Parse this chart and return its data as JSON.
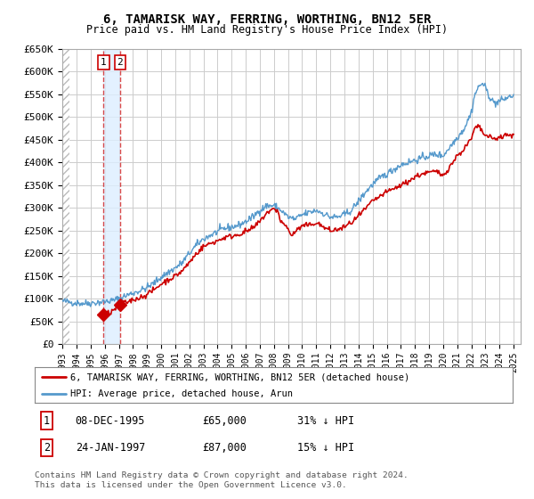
{
  "title": "6, TAMARISK WAY, FERRING, WORTHING, BN12 5ER",
  "subtitle": "Price paid vs. HM Land Registry's House Price Index (HPI)",
  "ylim": [
    0,
    650000
  ],
  "yticks": [
    0,
    50000,
    100000,
    150000,
    200000,
    250000,
    300000,
    350000,
    400000,
    450000,
    500000,
    550000,
    600000,
    650000
  ],
  "ytick_labels": [
    "£0",
    "£50K",
    "£100K",
    "£150K",
    "£200K",
    "£250K",
    "£300K",
    "£350K",
    "£400K",
    "£450K",
    "£500K",
    "£550K",
    "£600K",
    "£650K"
  ],
  "xlim_start": 1993.0,
  "xlim_end": 2025.5,
  "transactions": [
    {
      "label": "1",
      "date": "08-DEC-1995",
      "price": 65000,
      "year": 1995.92,
      "pct": "31% ↓ HPI"
    },
    {
      "label": "2",
      "date": "24-JAN-1997",
      "price": 87000,
      "year": 1997.07,
      "pct": "15% ↓ HPI"
    }
  ],
  "legend_line1": "6, TAMARISK WAY, FERRING, WORTHING, BN12 5ER (detached house)",
  "legend_line2": "HPI: Average price, detached house, Arun",
  "footer": "Contains HM Land Registry data © Crown copyright and database right 2024.\nThis data is licensed under the Open Government Licence v3.0.",
  "line_color_red": "#cc0000",
  "line_color_blue": "#5599cc",
  "shade_color": "#ddeeff",
  "vline_color": "#cc0000",
  "grid_color": "#cccccc",
  "bg_color": "#ffffff",
  "hpi_keypoints": [
    [
      1993.0,
      95000
    ],
    [
      1993.5,
      93000
    ],
    [
      1994.0,
      91000
    ],
    [
      1994.5,
      90000
    ],
    [
      1995.0,
      91000
    ],
    [
      1995.5,
      92000
    ],
    [
      1996.0,
      94000
    ],
    [
      1996.5,
      96000
    ],
    [
      1997.0,
      100000
    ],
    [
      1997.5,
      107000
    ],
    [
      1998.0,
      113000
    ],
    [
      1998.5,
      118000
    ],
    [
      1999.0,
      125000
    ],
    [
      1999.5,
      135000
    ],
    [
      2000.0,
      148000
    ],
    [
      2000.5,
      158000
    ],
    [
      2001.0,
      168000
    ],
    [
      2001.5,
      180000
    ],
    [
      2002.0,
      200000
    ],
    [
      2002.5,
      218000
    ],
    [
      2003.0,
      232000
    ],
    [
      2003.5,
      240000
    ],
    [
      2004.0,
      248000
    ],
    [
      2004.5,
      255000
    ],
    [
      2005.0,
      258000
    ],
    [
      2005.5,
      262000
    ],
    [
      2006.0,
      270000
    ],
    [
      2006.5,
      280000
    ],
    [
      2007.0,
      295000
    ],
    [
      2007.5,
      305000
    ],
    [
      2008.0,
      305000
    ],
    [
      2008.5,
      295000
    ],
    [
      2009.0,
      280000
    ],
    [
      2009.5,
      275000
    ],
    [
      2010.0,
      285000
    ],
    [
      2010.5,
      290000
    ],
    [
      2011.0,
      295000
    ],
    [
      2011.5,
      288000
    ],
    [
      2012.0,
      280000
    ],
    [
      2012.5,
      280000
    ],
    [
      2013.0,
      285000
    ],
    [
      2013.5,
      295000
    ],
    [
      2014.0,
      315000
    ],
    [
      2014.5,
      335000
    ],
    [
      2015.0,
      352000
    ],
    [
      2015.5,
      365000
    ],
    [
      2016.0,
      375000
    ],
    [
      2016.5,
      385000
    ],
    [
      2017.0,
      395000
    ],
    [
      2017.5,
      400000
    ],
    [
      2018.0,
      405000
    ],
    [
      2018.5,
      410000
    ],
    [
      2019.0,
      415000
    ],
    [
      2019.5,
      418000
    ],
    [
      2020.0,
      415000
    ],
    [
      2020.5,
      435000
    ],
    [
      2021.0,
      455000
    ],
    [
      2021.5,
      475000
    ],
    [
      2022.0,
      510000
    ],
    [
      2022.25,
      550000
    ],
    [
      2022.5,
      565000
    ],
    [
      2022.75,
      575000
    ],
    [
      2023.0,
      565000
    ],
    [
      2023.25,
      548000
    ],
    [
      2023.5,
      535000
    ],
    [
      2023.75,
      530000
    ],
    [
      2024.0,
      535000
    ],
    [
      2024.5,
      542000
    ],
    [
      2025.0,
      548000
    ]
  ],
  "red_keypoints": [
    [
      1995.92,
      65000
    ],
    [
      1996.5,
      72000
    ],
    [
      1997.07,
      87000
    ],
    [
      1997.5,
      92000
    ],
    [
      1998.0,
      98000
    ],
    [
      1998.5,
      103000
    ],
    [
      1999.0,
      110000
    ],
    [
      1999.5,
      120000
    ],
    [
      2000.0,
      133000
    ],
    [
      2000.5,
      142000
    ],
    [
      2001.0,
      150000
    ],
    [
      2001.5,
      162000
    ],
    [
      2002.0,
      180000
    ],
    [
      2002.5,
      200000
    ],
    [
      2003.0,
      215000
    ],
    [
      2003.5,
      222000
    ],
    [
      2004.0,
      228000
    ],
    [
      2004.5,
      235000
    ],
    [
      2005.0,
      238000
    ],
    [
      2005.5,
      242000
    ],
    [
      2006.0,
      248000
    ],
    [
      2006.5,
      255000
    ],
    [
      2007.0,
      270000
    ],
    [
      2007.5,
      290000
    ],
    [
      2008.0,
      297000
    ],
    [
      2008.25,
      295000
    ],
    [
      2008.5,
      270000
    ],
    [
      2009.0,
      255000
    ],
    [
      2009.25,
      238000
    ],
    [
      2009.5,
      248000
    ],
    [
      2010.0,
      260000
    ],
    [
      2010.5,
      262000
    ],
    [
      2011.0,
      268000
    ],
    [
      2011.5,
      258000
    ],
    [
      2012.0,
      250000
    ],
    [
      2012.5,
      252000
    ],
    [
      2013.0,
      258000
    ],
    [
      2013.5,
      268000
    ],
    [
      2014.0,
      282000
    ],
    [
      2014.5,
      298000
    ],
    [
      2015.0,
      315000
    ],
    [
      2015.5,
      325000
    ],
    [
      2016.0,
      335000
    ],
    [
      2016.5,
      342000
    ],
    [
      2017.0,
      350000
    ],
    [
      2017.5,
      358000
    ],
    [
      2018.0,
      368000
    ],
    [
      2018.5,
      375000
    ],
    [
      2019.0,
      378000
    ],
    [
      2019.5,
      380000
    ],
    [
      2020.0,
      372000
    ],
    [
      2020.5,
      392000
    ],
    [
      2021.0,
      415000
    ],
    [
      2021.5,
      430000
    ],
    [
      2022.0,
      452000
    ],
    [
      2022.25,
      475000
    ],
    [
      2022.5,
      480000
    ],
    [
      2022.75,
      468000
    ],
    [
      2023.0,
      460000
    ],
    [
      2023.5,
      452000
    ],
    [
      2024.0,
      455000
    ],
    [
      2024.5,
      460000
    ],
    [
      2025.0,
      458000
    ]
  ]
}
